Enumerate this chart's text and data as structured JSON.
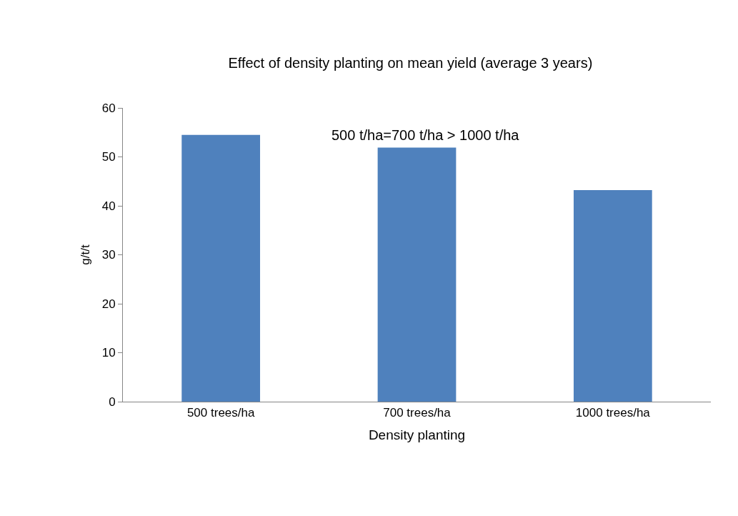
{
  "chart_data": {
    "type": "bar",
    "title": "Effect of density planting on mean yield (average 3 years)",
    "xlabel": "Density planting",
    "ylabel": "g/t/t",
    "categories": [
      "500 trees/ha",
      "700 trees/ha",
      "1000 trees/ha"
    ],
    "values": [
      54.5,
      51.9,
      43.2
    ],
    "color": "#4f81bd",
    "ylim": [
      0,
      60
    ],
    "yticks": [
      0,
      10,
      20,
      30,
      40,
      50,
      60
    ],
    "annotations": [
      "500 t/ha=700 t/ha > 1000 t/ha"
    ]
  }
}
